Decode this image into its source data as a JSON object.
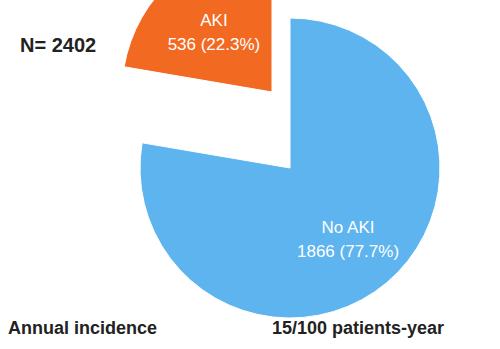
{
  "chart_data": {
    "type": "pie",
    "title": "N= 2402",
    "categories": [
      "AKI",
      "No AKI"
    ],
    "values": [
      536,
      1866
    ],
    "value_labels": [
      "536 (22.3%)",
      "1866 (77.7%)"
    ],
    "colors": [
      "#f26a21",
      "#5eb4ef"
    ],
    "data_labels": true,
    "annotations": [
      "Annual incidence",
      "15/100 patients-year"
    ]
  }
}
